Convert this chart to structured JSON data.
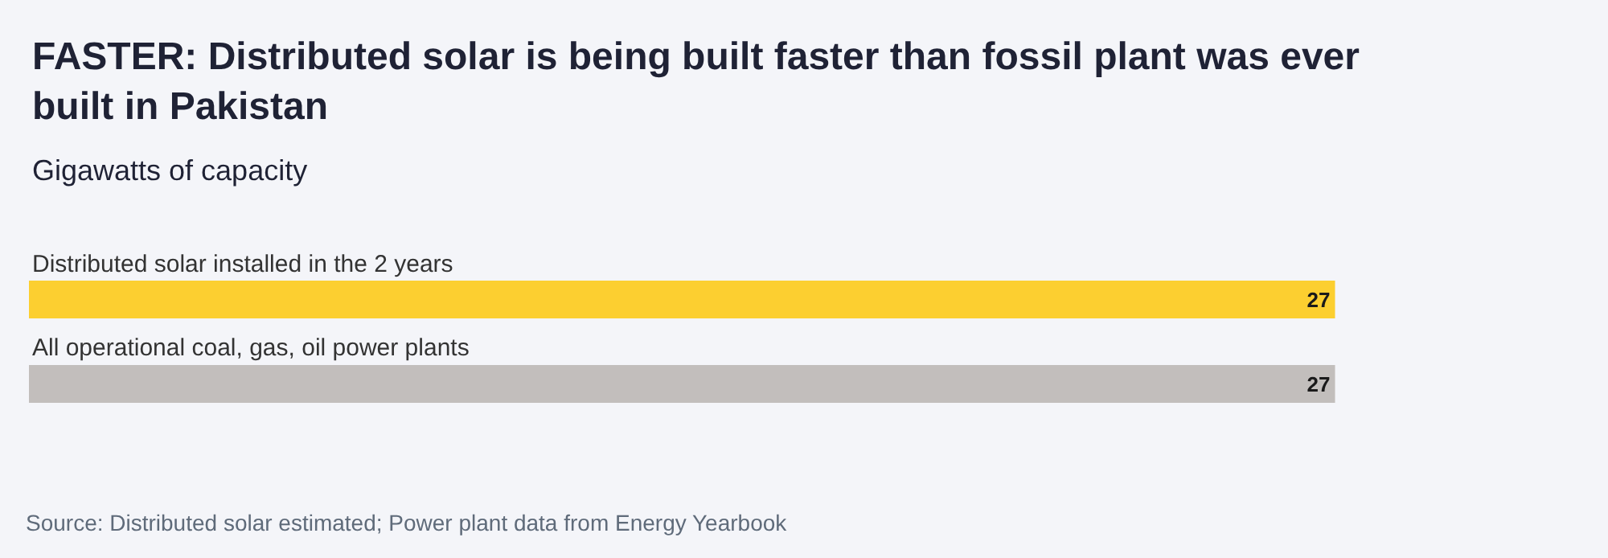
{
  "chart_data": {
    "type": "bar",
    "orientation": "horizontal",
    "title": "FASTER: Distributed solar is being built faster than fossil plant was ever built in Pakistan",
    "subtitle": "Gigawatts of capacity",
    "categories": [
      "Distributed solar installed in the 2 years",
      "All operational coal, gas, oil power plants"
    ],
    "values": [
      27,
      27
    ],
    "colors": [
      "#fccf30",
      "#c2bebc"
    ],
    "tick_labels": false,
    "grid": false,
    "legend": false,
    "data_labels": true,
    "annotations": [
      "Source: Distributed solar estimated; Power plant data from Energy Yearbook"
    ]
  }
}
